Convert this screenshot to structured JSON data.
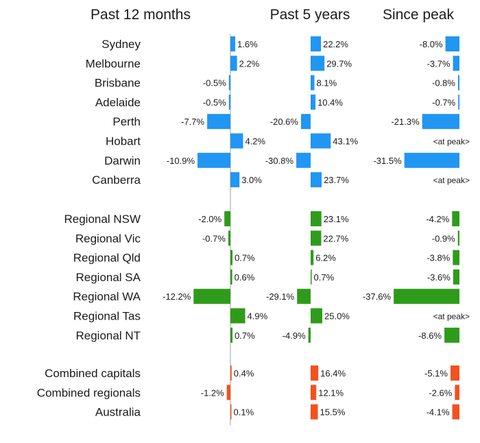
{
  "chart_data": {
    "type": "bar",
    "columns": [
      {
        "key": "past_12_months",
        "title": "Past 12 months"
      },
      {
        "key": "past_5_years",
        "title": "Past 5 years"
      },
      {
        "key": "since_peak",
        "title": "Since peak"
      }
    ],
    "colors": {
      "capitals": "#2196f3",
      "regionals": "#2e9c1a",
      "combined": "#f4511e",
      "axis": "#bfbfbf"
    },
    "groups": [
      {
        "name": "capitals",
        "rows": [
          {
            "label": "Sydney",
            "past_12_months": 1.6,
            "past_5_years": 22.2,
            "since_peak": -8.0
          },
          {
            "label": "Melbourne",
            "past_12_months": 2.2,
            "past_5_years": 29.7,
            "since_peak": -3.7
          },
          {
            "label": "Brisbane",
            "past_12_months": -0.5,
            "past_5_years": 8.1,
            "since_peak": -0.8
          },
          {
            "label": "Adelaide",
            "past_12_months": -0.5,
            "past_5_years": 10.4,
            "since_peak": -0.7
          },
          {
            "label": "Perth",
            "past_12_months": -7.7,
            "past_5_years": -20.6,
            "since_peak": -21.3
          },
          {
            "label": "Hobart",
            "past_12_months": 4.2,
            "past_5_years": 43.1,
            "since_peak": null
          },
          {
            "label": "Darwin",
            "past_12_months": -10.9,
            "past_5_years": -30.8,
            "since_peak": -31.5
          },
          {
            "label": "Canberra",
            "past_12_months": 3.0,
            "past_5_years": 23.7,
            "since_peak": null
          }
        ]
      },
      {
        "name": "regionals",
        "rows": [
          {
            "label": "Regional NSW",
            "past_12_months": -2.0,
            "past_5_years": 23.1,
            "since_peak": -4.2
          },
          {
            "label": "Regional Vic",
            "past_12_months": -0.7,
            "past_5_years": 22.7,
            "since_peak": -0.9
          },
          {
            "label": "Regional Qld",
            "past_12_months": 0.7,
            "past_5_years": 6.2,
            "since_peak": -3.8
          },
          {
            "label": "Regional SA",
            "past_12_months": 0.6,
            "past_5_years": 0.7,
            "since_peak": -3.6
          },
          {
            "label": "Regional WA",
            "past_12_months": -12.2,
            "past_5_years": -29.1,
            "since_peak": -37.6
          },
          {
            "label": "Regional Tas",
            "past_12_months": 4.9,
            "past_5_years": 25.0,
            "since_peak": null
          },
          {
            "label": "Regional NT",
            "past_12_months": 0.7,
            "past_5_years": -4.9,
            "since_peak": -8.6
          }
        ]
      },
      {
        "name": "combined",
        "rows": [
          {
            "label": "Combined capitals",
            "past_12_months": 0.4,
            "past_5_years": 16.4,
            "since_peak": -5.1
          },
          {
            "label": "Combined regionals",
            "past_12_months": -1.2,
            "past_5_years": 12.1,
            "since_peak": -2.6
          },
          {
            "label": "Australia",
            "past_12_months": 0.1,
            "past_5_years": 15.5,
            "since_peak": -4.1
          }
        ]
      }
    ],
    "at_peak_text": "<at peak>"
  }
}
